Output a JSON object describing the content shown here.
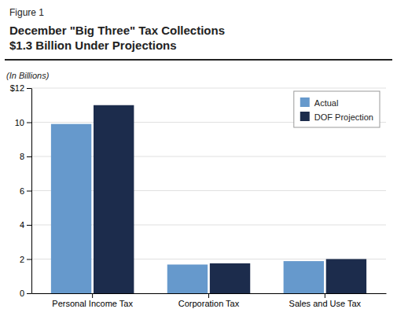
{
  "chart_data": {
    "type": "bar",
    "title": "December \"Big Three\" Tax Collections",
    "subtitle": "$1.3 Billion Under Projections",
    "annotations": [
      "Figure 1"
    ],
    "y_label": "(In Billions)",
    "categories": [
      "Personal Income Tax",
      "Corporation Tax",
      "Sales and Use Tax"
    ],
    "series": [
      {
        "name": "Actual",
        "color": "#6699CC",
        "values": [
          9.9,
          1.68,
          1.88
        ]
      },
      {
        "name": "DOF Projection",
        "color": "#1C2C4C",
        "values": [
          11.0,
          1.75,
          2.0
        ]
      }
    ],
    "ylim": [
      0,
      12
    ],
    "yticks": [
      0,
      2,
      4,
      6,
      8,
      10,
      {
        "value": 12,
        "label": "$12"
      }
    ],
    "grid": true,
    "legend": "upper right"
  }
}
